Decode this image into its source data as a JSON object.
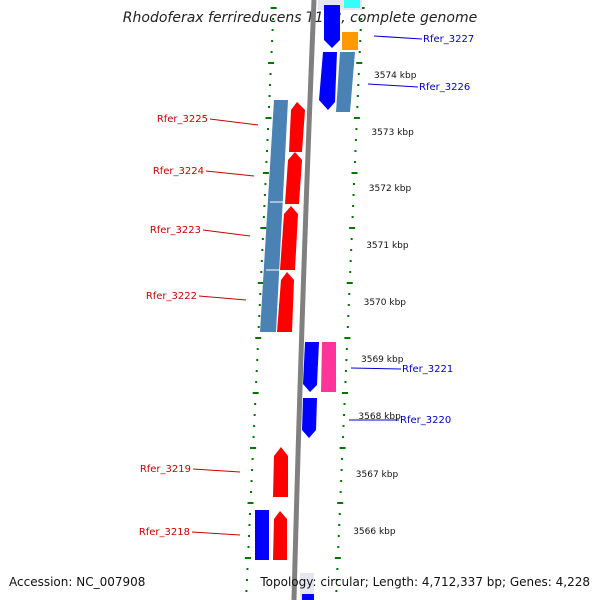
{
  "title": "Rhodoferax ferrireducens T118, complete genome",
  "accession_text": "Accession: NC_007908",
  "topology_text": "Topology: circular; Length: 4,712,337 bp; Genes: 4,228",
  "colors": {
    "forward_gene": "#ff0000",
    "reverse_gene": "#0000ff",
    "cds_steelblue": "#4a82b4",
    "pink_gene": "#ff3399",
    "orange_gene": "#ff9900",
    "cyan_gene": "#33ffff",
    "backbone": "#808080",
    "ticks": "#007700",
    "label_left": "#cc0000",
    "label_right": "#0000cc"
  },
  "scale_labels": [
    "3574 kbp",
    "3573 kbp",
    "3572 kbp",
    "3571 kbp",
    "3570 kbp",
    "3569 kbp",
    "3568 kbp",
    "3567 kbp",
    "3566 kbp"
  ],
  "gene_labels_left": [
    "Rfer_3225",
    "Rfer_3224",
    "Rfer_3223",
    "Rfer_3222",
    "Rfer_3219",
    "Rfer_3218"
  ],
  "gene_labels_right": [
    "Rfer_3227",
    "Rfer_3226",
    "Rfer_3221",
    "Rfer_3220"
  ]
}
